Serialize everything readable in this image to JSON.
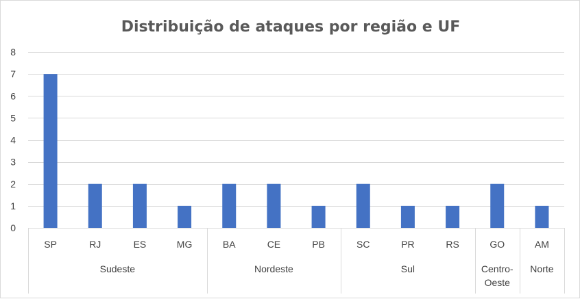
{
  "chart_data": {
    "type": "bar",
    "title": "Distribuição de ataques por região e UF",
    "categories": [
      "SP",
      "RJ",
      "ES",
      "MG",
      "BA",
      "CE",
      "PB",
      "SC",
      "PR",
      "RS",
      "GO",
      "AM"
    ],
    "values": [
      7,
      2,
      2,
      1,
      2,
      2,
      1,
      2,
      1,
      1,
      2,
      1
    ],
    "groups": [
      {
        "label": [
          "Sudeste"
        ],
        "count": 4
      },
      {
        "label": [
          "Nordeste"
        ],
        "count": 3
      },
      {
        "label": [
          "Sul"
        ],
        "count": 3
      },
      {
        "label": [
          "Centro-",
          "Oeste"
        ],
        "count": 1
      },
      {
        "label": [
          "Norte"
        ],
        "count": 1
      }
    ],
    "ylim": [
      0,
      8
    ],
    "yticks": [
      0,
      1,
      2,
      3,
      4,
      5,
      6,
      7,
      8
    ],
    "grid": true,
    "legend": "none",
    "bar_color": "#4472c4"
  }
}
